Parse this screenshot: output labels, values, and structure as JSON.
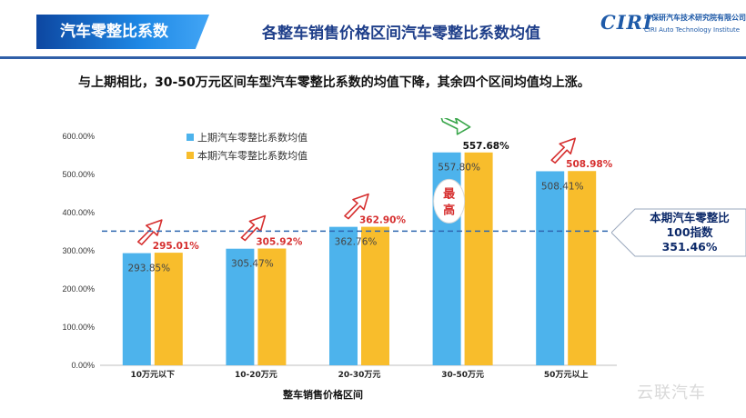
{
  "header": {
    "tag": "汽车零整比系数",
    "title": "各整车销售价格区间汽车零整比系数均值",
    "logo_mark": "CIRI",
    "logo_cn": "中保研汽车技术研究院有限公司",
    "logo_en": "CIRI Auto Technology Institute"
  },
  "summary": "与上期相比，30-50万元区间车型汽车零整比系数的均值下降，其余四个区间均值均上涨。",
  "callout": {
    "line1": "本期汽车零整比",
    "line2": "100指数",
    "line3": "351.46%"
  },
  "badge_text": [
    "最",
    "高"
  ],
  "watermark": "云联汽车",
  "colors": {
    "prev": "#4db3ec",
    "curr": "#f8bd2c",
    "red": "#d62f2f",
    "green": "#3aa64b",
    "ref": "#2f67b0"
  },
  "chart_data": {
    "type": "bar",
    "categories": [
      "10万元以下",
      "10-20万元",
      "20-30万元",
      "30-50万元",
      "50万元以上"
    ],
    "series": [
      {
        "name": "上期汽车零整比系数均值",
        "values": [
          293.85,
          305.47,
          362.76,
          557.8,
          508.41
        ],
        "labels": [
          "293.85%",
          "305.47%",
          "362.76%",
          "557.80%",
          "508.41%"
        ]
      },
      {
        "name": "本期汽车零整比系数均值",
        "values": [
          295.01,
          305.92,
          362.9,
          557.68,
          508.98
        ],
        "labels": [
          "295.01%",
          "305.92%",
          "362.90%",
          "557.68%",
          "508.98%"
        ]
      }
    ],
    "trend": [
      "up",
      "up",
      "up",
      "down",
      "up"
    ],
    "reference_value": 351.46,
    "xlabel": "整车销售价格区间",
    "ylabel": "",
    "ylim": [
      0,
      600
    ],
    "yticks": [
      "0.00%",
      "100.00%",
      "200.00%",
      "300.00%",
      "400.00%",
      "500.00%",
      "600.00%"
    ],
    "legend_position": "top-left",
    "grid": false
  }
}
